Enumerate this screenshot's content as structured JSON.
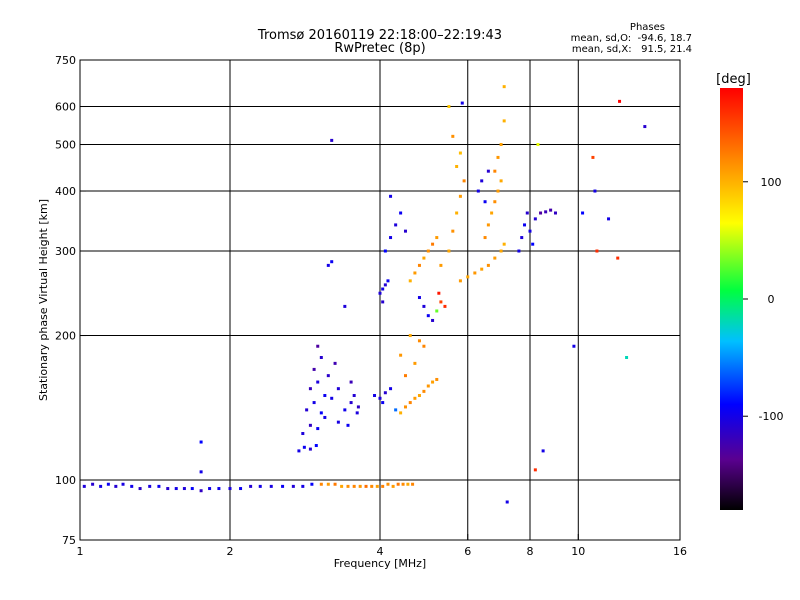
{
  "header": {
    "title_line1": "Tromsø 20160119 22:18:00–22:19:43",
    "title_line2": "RwPretec (8p)",
    "phases_title": "Phases",
    "phases_o": "mean, sd,O:  -94.6, 18.7",
    "phases_x": "mean, sd,X:   91.5, 21.4"
  },
  "chart_data": {
    "type": "scatter",
    "title": "Tromsø 20160119 22:18:00–22:19:43",
    "subtitle": "RwPretec (8p)",
    "xlabel": "Frequency [MHz]",
    "ylabel": "Stationary phase Virtual Height [km]",
    "x_scale": "log",
    "y_scale": "log",
    "xlim": [
      1,
      16
    ],
    "ylim": [
      75,
      750
    ],
    "x_ticks": [
      1,
      2,
      4,
      6,
      8,
      10,
      16
    ],
    "x_tick_labels": [
      "1",
      "2",
      "4",
      "6",
      "8",
      "10",
      "16"
    ],
    "x_grid": [
      2,
      4,
      6,
      8,
      10
    ],
    "y_ticks": [
      75,
      100,
      200,
      300,
      400,
      500,
      600,
      750
    ],
    "y_tick_labels": [
      "75",
      "100",
      "200",
      "300",
      "400",
      "500",
      "600",
      "750"
    ],
    "y_grid": [
      100,
      200,
      300,
      400,
      500,
      600
    ],
    "grid": true,
    "colorbar": {
      "label": "[deg]",
      "range": [
        -180,
        180
      ],
      "ticks": [
        100,
        0,
        -100
      ],
      "tick_labels": [
        "100",
        "0",
        "-100"
      ],
      "colormap": "rainbow"
    },
    "series": [
      {
        "points": [
          [
            1.02,
            97,
            -105
          ],
          [
            1.06,
            98,
            -110
          ],
          [
            1.1,
            97,
            -100
          ],
          [
            1.14,
            98,
            -95
          ],
          [
            1.18,
            97,
            -108
          ],
          [
            1.22,
            98,
            -102
          ],
          [
            1.27,
            97,
            -98
          ],
          [
            1.32,
            96,
            -112
          ],
          [
            1.38,
            97,
            -104
          ],
          [
            1.44,
            97,
            -96
          ],
          [
            1.5,
            96,
            -110
          ],
          [
            1.56,
            96,
            -100
          ],
          [
            1.62,
            96,
            -105
          ],
          [
            1.68,
            96,
            -92
          ],
          [
            1.75,
            95,
            -115
          ],
          [
            1.82,
            96,
            -100
          ],
          [
            1.9,
            96,
            -98
          ],
          [
            2.0,
            96,
            -104
          ],
          [
            2.1,
            96,
            -96
          ],
          [
            2.2,
            97,
            -108
          ],
          [
            2.3,
            97,
            -100
          ],
          [
            2.42,
            97,
            -102
          ],
          [
            2.55,
            97,
            -94
          ],
          [
            2.68,
            97,
            -106
          ],
          [
            2.8,
            97,
            -100
          ],
          [
            2.92,
            98,
            -92
          ],
          [
            3.05,
            98,
            120
          ],
          [
            3.15,
            98,
            110
          ],
          [
            3.25,
            98,
            125
          ],
          [
            3.35,
            97,
            105
          ],
          [
            3.45,
            97,
            115
          ],
          [
            3.55,
            97,
            120
          ],
          [
            3.65,
            97,
            112
          ],
          [
            3.75,
            97,
            130
          ],
          [
            3.85,
            97,
            118
          ],
          [
            3.95,
            97,
            108
          ],
          [
            4.05,
            97,
            122
          ],
          [
            4.15,
            98,
            115
          ],
          [
            4.25,
            97,
            110
          ],
          [
            4.35,
            98,
            126
          ],
          [
            4.45,
            98,
            118
          ],
          [
            4.55,
            98,
            104
          ],
          [
            4.65,
            98,
            120
          ],
          [
            2.75,
            115,
            -100
          ],
          [
            2.82,
            117,
            -95
          ],
          [
            2.9,
            116,
            -110
          ],
          [
            2.98,
            118,
            -90
          ],
          [
            2.8,
            125,
            -105
          ],
          [
            2.9,
            130,
            -115
          ],
          [
            3.0,
            128,
            -95
          ],
          [
            2.85,
            140,
            -108
          ],
          [
            2.95,
            145,
            -100
          ],
          [
            3.05,
            138,
            -92
          ],
          [
            2.9,
            155,
            -118
          ],
          [
            3.0,
            160,
            -104
          ],
          [
            3.1,
            150,
            -96
          ],
          [
            2.95,
            170,
            -125
          ],
          [
            3.05,
            180,
            -110
          ],
          [
            3.0,
            190,
            -130
          ],
          [
            3.15,
            165,
            -112
          ],
          [
            3.2,
            148,
            -100
          ],
          [
            3.3,
            155,
            -106
          ],
          [
            3.4,
            140,
            -98
          ],
          [
            3.5,
            145,
            -110
          ],
          [
            3.6,
            138,
            -104
          ],
          [
            3.5,
            160,
            -120
          ],
          [
            3.45,
            130,
            -95
          ],
          [
            3.3,
            132,
            -102
          ],
          [
            3.55,
            150,
            -108
          ],
          [
            3.62,
            142,
            -114
          ],
          [
            3.25,
            175,
            -122
          ],
          [
            3.1,
            135,
            -100
          ],
          [
            3.2,
            510,
            -110
          ],
          [
            3.15,
            280,
            -100
          ],
          [
            3.2,
            285,
            -95
          ],
          [
            3.4,
            230,
            -105
          ],
          [
            1.75,
            120,
            -90
          ],
          [
            1.75,
            104,
            -100
          ],
          [
            3.9,
            150,
            -100
          ],
          [
            4.0,
            148,
            -105
          ],
          [
            4.05,
            145,
            -95
          ],
          [
            4.1,
            152,
            -110
          ],
          [
            4.2,
            155,
            -100
          ],
          [
            4.3,
            140,
            -60
          ],
          [
            4.4,
            138,
            100
          ],
          [
            4.5,
            142,
            115
          ],
          [
            4.6,
            145,
            120
          ],
          [
            4.7,
            148,
            110
          ],
          [
            4.8,
            150,
            105
          ],
          [
            4.9,
            153,
            118
          ],
          [
            5.0,
            157,
            112
          ],
          [
            5.1,
            160,
            108
          ],
          [
            5.2,
            162,
            116
          ],
          [
            4.5,
            165,
            124
          ],
          [
            4.7,
            175,
            110
          ],
          [
            4.9,
            190,
            120
          ],
          [
            4.6,
            200,
            104
          ],
          [
            4.8,
            195,
            118
          ],
          [
            4.4,
            182,
            112
          ],
          [
            4.0,
            245,
            -105
          ],
          [
            4.05,
            250,
            -100
          ],
          [
            4.1,
            255,
            -108
          ],
          [
            4.15,
            260,
            -95
          ],
          [
            4.05,
            235,
            -110
          ],
          [
            4.1,
            300,
            -90
          ],
          [
            4.2,
            320,
            -100
          ],
          [
            4.3,
            340,
            -105
          ],
          [
            4.4,
            360,
            -95
          ],
          [
            4.2,
            390,
            -100
          ],
          [
            4.5,
            330,
            -110
          ],
          [
            4.6,
            260,
            100
          ],
          [
            4.7,
            270,
            110
          ],
          [
            4.8,
            280,
            120
          ],
          [
            4.9,
            290,
            105
          ],
          [
            5.0,
            300,
            115
          ],
          [
            5.1,
            310,
            125
          ],
          [
            5.2,
            320,
            110
          ],
          [
            4.8,
            240,
            -100
          ],
          [
            4.9,
            230,
            -105
          ],
          [
            5.0,
            220,
            -95
          ],
          [
            5.1,
            215,
            -110
          ],
          [
            5.2,
            225,
            30
          ],
          [
            5.3,
            235,
            150
          ],
          [
            5.25,
            245,
            170
          ],
          [
            5.4,
            230,
            160
          ],
          [
            5.3,
            280,
            110
          ],
          [
            5.5,
            300,
            105
          ],
          [
            5.6,
            330,
            115
          ],
          [
            5.7,
            360,
            100
          ],
          [
            5.8,
            390,
            110
          ],
          [
            5.9,
            420,
            120
          ],
          [
            5.7,
            450,
            100
          ],
          [
            5.8,
            480,
            95
          ],
          [
            5.6,
            520,
            115
          ],
          [
            5.5,
            600,
            90
          ],
          [
            5.85,
            610,
            -100
          ],
          [
            5.8,
            260,
            110
          ],
          [
            6.0,
            265,
            105
          ],
          [
            6.2,
            270,
            112
          ],
          [
            6.4,
            275,
            108
          ],
          [
            6.6,
            280,
            115
          ],
          [
            6.8,
            290,
            110
          ],
          [
            7.0,
            300,
            105
          ],
          [
            7.1,
            310,
            100
          ],
          [
            6.5,
            320,
            118
          ],
          [
            6.6,
            340,
            112
          ],
          [
            6.7,
            360,
            106
          ],
          [
            6.8,
            380,
            116
          ],
          [
            6.9,
            400,
            110
          ],
          [
            7.0,
            420,
            104
          ],
          [
            6.8,
            440,
            120
          ],
          [
            6.9,
            470,
            112
          ],
          [
            7.0,
            500,
            108
          ],
          [
            7.1,
            560,
            100
          ],
          [
            6.3,
            400,
            -100
          ],
          [
            6.4,
            420,
            -105
          ],
          [
            6.5,
            380,
            -95
          ],
          [
            6.6,
            440,
            -110
          ],
          [
            7.1,
            660,
            100
          ],
          [
            7.6,
            300,
            -100
          ],
          [
            7.7,
            320,
            -105
          ],
          [
            7.8,
            340,
            -95
          ],
          [
            7.9,
            360,
            -110
          ],
          [
            8.0,
            330,
            -100
          ],
          [
            8.1,
            310,
            -90
          ],
          [
            8.2,
            350,
            -108
          ],
          [
            8.4,
            360,
            -130
          ],
          [
            8.6,
            362,
            -120
          ],
          [
            8.8,
            365,
            -125
          ],
          [
            9.0,
            360,
            -115
          ],
          [
            8.3,
            500,
            60
          ],
          [
            7.2,
            90,
            -100
          ],
          [
            8.2,
            105,
            160
          ],
          [
            8.5,
            115,
            -100
          ],
          [
            9.8,
            190,
            -100
          ],
          [
            10.2,
            360,
            -90
          ],
          [
            10.7,
            470,
            150
          ],
          [
            10.8,
            400,
            -100
          ],
          [
            10.9,
            300,
            160
          ],
          [
            11.5,
            350,
            -100
          ],
          [
            12.1,
            615,
            180
          ],
          [
            12.0,
            290,
            160
          ],
          [
            12.5,
            180,
            -20
          ],
          [
            13.6,
            545,
            -110
          ]
        ]
      }
    ]
  }
}
